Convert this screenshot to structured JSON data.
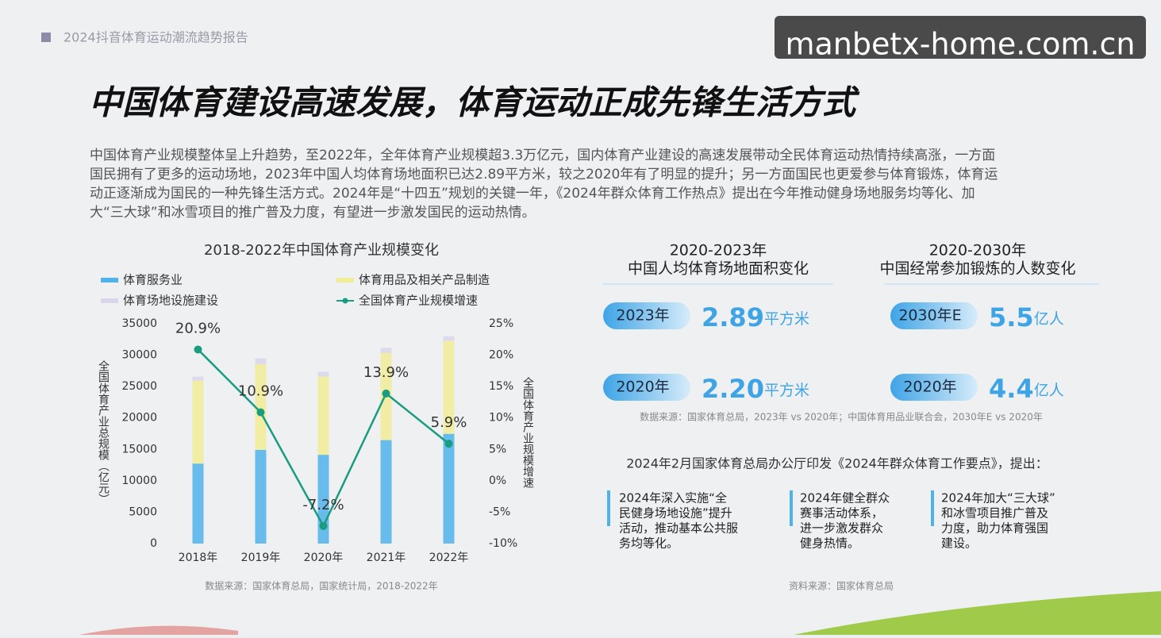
{
  "header": {
    "report": "2024抖音体育运动潮流趋势报告",
    "watermark": "manbetx-home.com.cn"
  },
  "title": "中国体育建设高速发展，体育运动正成先锋生活方式",
  "intro": [
    "中国体育产业规模整体呈上升趋势，至2022年，全年体育产业规模超3.3万亿元，国内体育产业建设的高速发展带动全民体育运动热情持续高涨，一方面",
    "国民拥有了更多的运动场地，2023年中国人均体育场地面积已达2.89平方米，较之2020年有了明显的提升；另一方面国民也更爱参与体育锻炼，体育运",
    "动正逐渐成为国民的一种先锋生活方式。2024年是“十四五”规划的关键一年，《2024年群众体育工作热点》提出在今年推动健身场地服务均等化、加",
    "大“三大球”和冰雪项目的推广普及力度，有望进一步激发国民的运动热情。"
  ],
  "chart_data": {
    "type": "bar",
    "stacked": true,
    "title": "2018-2022年中国体育产业规模变化",
    "categories": [
      "2018年",
      "2019年",
      "2020年",
      "2021年",
      "2022年"
    ],
    "series": [
      {
        "name": "体育服务业",
        "color": "#4fb3ea",
        "values": [
          12732,
          14929,
          14136,
          16477,
          17475
        ]
      },
      {
        "name": "体育用品及相关产品制造",
        "color": "#f1ec98",
        "values": [
          13201,
          13614,
          12475,
          13880,
          14800
        ]
      },
      {
        "name": "体育场地设施建设",
        "color": "#d9d6ec",
        "values": [
          646,
          940,
          761,
          818,
          733
        ]
      },
      {
        "name": "全国体育产业规模增速",
        "type": "line",
        "axis": "y2",
        "color": "#1a9c80",
        "values": [
          20.9,
          10.9,
          -7.2,
          13.9,
          5.9
        ],
        "value_labels": [
          "20.9%",
          "10.9%",
          "-7.2%",
          "13.9%",
          "5.9%"
        ]
      }
    ],
    "ylim": [
      0,
      35000
    ],
    "yticks": [
      0,
      5000,
      10000,
      15000,
      20000,
      25000,
      30000,
      35000
    ],
    "y2lim": [
      -10,
      25
    ],
    "y2ticks": [
      {
        "value": -10,
        "label": "-10%"
      },
      {
        "value": -5,
        "label": "-5%"
      },
      {
        "value": 0,
        "label": "0%"
      },
      {
        "value": 5,
        "label": "5%"
      },
      {
        "value": 10,
        "label": "10%"
      },
      {
        "value": 15,
        "label": "15%"
      },
      {
        "value": 20,
        "label": "20%"
      },
      {
        "value": 25,
        "label": "25%"
      }
    ],
    "ylabel": "全国体育产业总规模（亿元）",
    "y2label": "全国体育产业规模增速",
    "source": "数据来源：国家体育总局，国家统计局，2018-2022年"
  },
  "area_panel": {
    "title": [
      "2020-2023年",
      "中国人均体育场地面积变化"
    ],
    "items": [
      {
        "label": "2023年",
        "value": "2.89",
        "unit": "平方米"
      },
      {
        "label": "2020年",
        "value": "2.20",
        "unit": "平方米"
      }
    ]
  },
  "people_panel": {
    "title": [
      "2020-2030年",
      "中国经常参加锻炼的人数变化"
    ],
    "items": [
      {
        "label": "2030年E",
        "value": "5.5",
        "unit": "亿人"
      },
      {
        "label": "2020年",
        "value": "4.4",
        "unit": "亿人"
      }
    ]
  },
  "panels_source": "数据来源：国家体育总局，2023年 vs 2020年；中国体育用品业联合会，2030年E vs 2020年",
  "notice": {
    "heading": "2024年2月国家体育总局办公厅印发《2024年群众体育工作要点》，提出：",
    "items": [
      [
        "2024年深入实施“全",
        "民健身场地设施”提升",
        "活动，推动基本公共服",
        "务均等化。"
      ],
      [
        "2024年健全群众",
        "赛事活动体系，",
        "进一步激发群众",
        "健身热情。"
      ],
      [
        "2024年加大“三大球”",
        "和冰雪项目推广普及",
        "力度，助力体育强国",
        "建设。"
      ]
    ],
    "source": "资料来源：国家体育总局"
  }
}
